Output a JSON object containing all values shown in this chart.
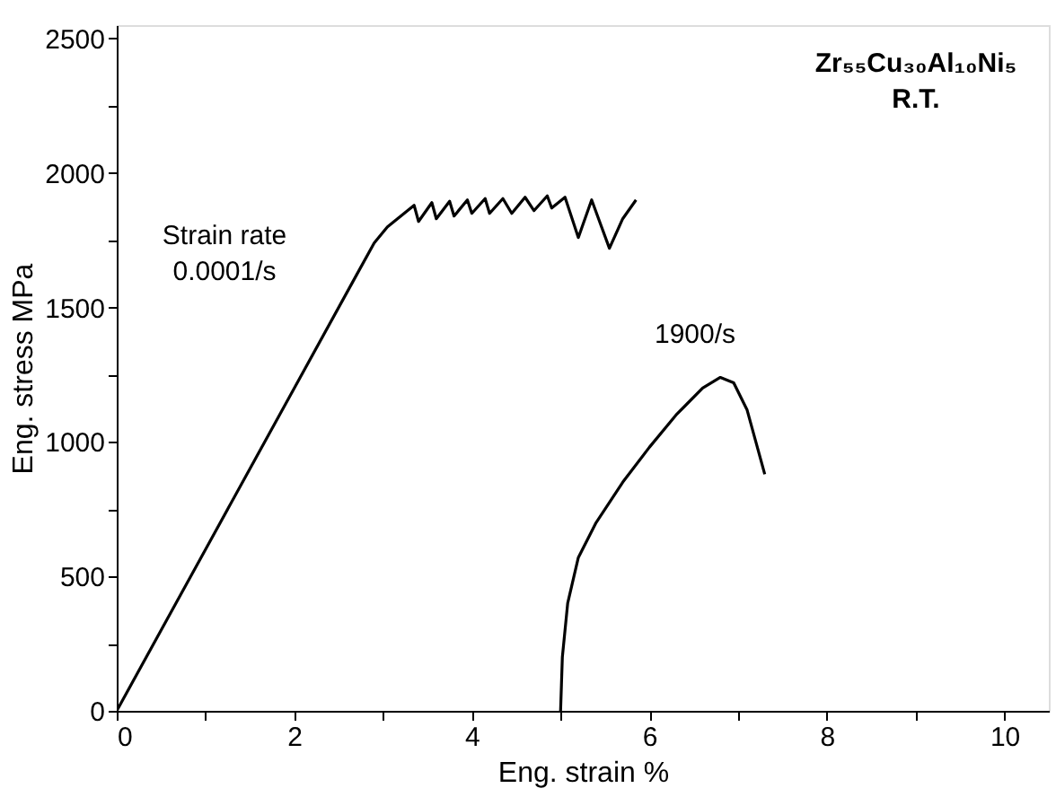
{
  "chart_data": {
    "type": "line",
    "xlabel": "Eng. strain %",
    "ylabel": "Eng. stress MPa",
    "xlim": [
      0,
      10.5
    ],
    "ylim": [
      0,
      2550
    ],
    "xticks": [
      0,
      {
        "value": 1,
        "label": null
      },
      2,
      {
        "value": 3,
        "label": null
      },
      4,
      {
        "value": 5,
        "label": null
      },
      6,
      {
        "value": 7,
        "label": null
      },
      8,
      {
        "value": 9,
        "label": null
      },
      10
    ],
    "yticks": [
      0,
      {
        "value": 250,
        "label": null
      },
      500,
      {
        "value": 750,
        "label": null
      },
      1000,
      {
        "value": 1250,
        "label": null
      },
      1500,
      {
        "value": 1750,
        "label": null
      },
      2000,
      {
        "value": 2250,
        "label": null
      },
      2500
    ],
    "grid": false,
    "marker": "none",
    "line_style": "solid",
    "series": [
      {
        "color": "#000000",
        "x": [
          0,
          1.0,
          2.0,
          2.7,
          2.9,
          3.05,
          3.2,
          3.35,
          3.4,
          3.55,
          3.6,
          3.75,
          3.8,
          3.95,
          4.0,
          4.15,
          4.2,
          4.35,
          4.45,
          4.6,
          4.7,
          4.85,
          4.9,
          5.05,
          5.2,
          5.35,
          5.55,
          5.7,
          5.85
        ],
        "values": [
          0,
          600,
          1200,
          1620,
          1740,
          1800,
          1840,
          1880,
          1820,
          1890,
          1830,
          1895,
          1840,
          1900,
          1850,
          1905,
          1850,
          1905,
          1850,
          1910,
          1860,
          1915,
          1870,
          1910,
          1760,
          1900,
          1720,
          1830,
          1900
        ]
      },
      {
        "color": "#000000",
        "x": [
          5.0,
          5.02,
          5.08,
          5.2,
          5.4,
          5.7,
          6.0,
          6.3,
          6.6,
          6.8,
          6.95,
          7.1,
          7.2,
          7.3
        ],
        "values": [
          0,
          200,
          400,
          570,
          700,
          850,
          980,
          1100,
          1200,
          1240,
          1220,
          1120,
          1000,
          880
        ]
      }
    ],
    "annotations": [
      "Strain rate\n0.0001/s",
      "1900/s",
      "Zr₅₅Cu₃₀Al₁₀Ni₅\nR.T."
    ]
  }
}
